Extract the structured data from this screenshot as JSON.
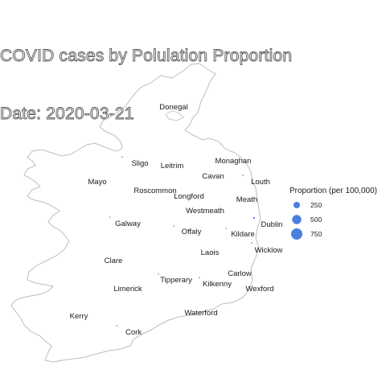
{
  "title": {
    "line1": "COVID cases by Polulation Proportion",
    "line2": "Date: 2020-03-21"
  },
  "colors": {
    "outline": "#bdbdbd",
    "bubble": "#4a7fe0",
    "text": "#1a1a1a"
  },
  "legend": {
    "title": "Proportion (per 100,000)",
    "items": [
      {
        "label": "250",
        "value": 250
      },
      {
        "label": "500",
        "value": 500
      },
      {
        "label": "750",
        "value": 750
      }
    ]
  },
  "counties": [
    {
      "name": "Donegal",
      "proportion": 0
    },
    {
      "name": "Sligo",
      "proportion": 5
    },
    {
      "name": "Leitrim",
      "proportion": 0
    },
    {
      "name": "Monaghan",
      "proportion": 0
    },
    {
      "name": "Cavan",
      "proportion": 5
    },
    {
      "name": "Louth",
      "proportion": 0
    },
    {
      "name": "Mayo",
      "proportion": 0
    },
    {
      "name": "Roscommon",
      "proportion": 0
    },
    {
      "name": "Longford",
      "proportion": 0
    },
    {
      "name": "Meath",
      "proportion": 0
    },
    {
      "name": "Westmeath",
      "proportion": 0
    },
    {
      "name": "Galway",
      "proportion": 4
    },
    {
      "name": "Dublin",
      "proportion": 20
    },
    {
      "name": "Offaly",
      "proportion": 3
    },
    {
      "name": "Kildare",
      "proportion": 3
    },
    {
      "name": "Laois",
      "proportion": 0
    },
    {
      "name": "Wicklow",
      "proportion": 3
    },
    {
      "name": "Clare",
      "proportion": 0
    },
    {
      "name": "Carlow",
      "proportion": 0
    },
    {
      "name": "Tipperary",
      "proportion": 3
    },
    {
      "name": "Kilkenny",
      "proportion": 3
    },
    {
      "name": "Limerick",
      "proportion": 0
    },
    {
      "name": "Wexford",
      "proportion": 0
    },
    {
      "name": "Waterford",
      "proportion": 0
    },
    {
      "name": "Kerry",
      "proportion": 0
    },
    {
      "name": "Cork",
      "proportion": 5
    }
  ]
}
